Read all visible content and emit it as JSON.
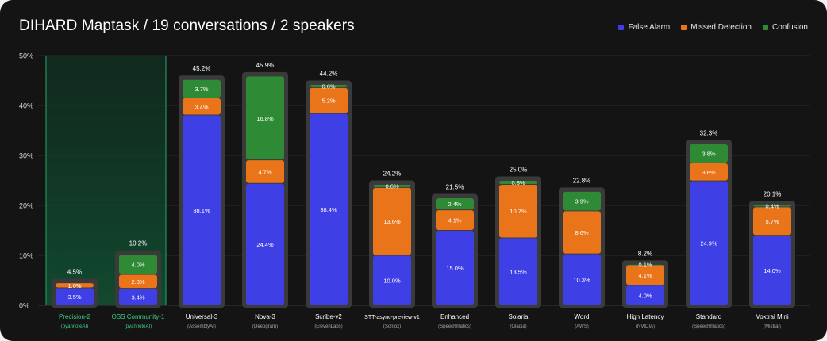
{
  "chart_data": {
    "type": "bar",
    "stacked": true,
    "title": "DIHARD Maptask / 19 conversations / 2 speakers",
    "xlabel": "",
    "ylabel": "",
    "ylim": [
      0,
      50
    ],
    "yticks": [
      "0%",
      "10%",
      "20%",
      "30%",
      "40%",
      "50%"
    ],
    "ytick_values": [
      0,
      10,
      20,
      30,
      40,
      50
    ],
    "grid": true,
    "legend_position": "top-right",
    "highlight_group": "pyannoteAI",
    "categories": [
      {
        "name": "Precision-2",
        "provider": "(pyannoteAI)",
        "total": "4.5%",
        "highlight": true
      },
      {
        "name": "OSS Community-1",
        "provider": "(pyannoteAI)",
        "total": "10.2%",
        "highlight": true
      },
      {
        "name": "Universal-3",
        "provider": "(AssemblyAI)",
        "total": "45.2%",
        "highlight": false
      },
      {
        "name": "Nova-3",
        "provider": "(Deepgram)",
        "total": "45.9%",
        "highlight": false
      },
      {
        "name": "Scribe-v2",
        "provider": "(ElevenLabs)",
        "total": "44.2%",
        "highlight": false
      },
      {
        "name": "STT-async-preview-v1",
        "provider": "(Soniox)",
        "total": "24.2%",
        "highlight": false
      },
      {
        "name": "Enhanced",
        "provider": "(Speechmatics)",
        "total": "21.5%",
        "highlight": false
      },
      {
        "name": "Solaria",
        "provider": "(Gladia)",
        "total": "25.0%",
        "highlight": false
      },
      {
        "name": "Word",
        "provider": "(AWS)",
        "total": "22.8%",
        "highlight": false
      },
      {
        "name": "High Latency",
        "provider": "(NVIDIA)",
        "total": "8.2%",
        "highlight": false
      },
      {
        "name": "Standard",
        "provider": "(Speechmatics)",
        "total": "32.3%",
        "highlight": false
      },
      {
        "name": "Voxtral Mini",
        "provider": "(Mistral)",
        "total": "20.1%",
        "highlight": false
      }
    ],
    "series": [
      {
        "name": "False Alarm",
        "color": "#3f3fe6",
        "values": [
          3.5,
          3.4,
          38.1,
          24.4,
          38.4,
          10.0,
          15.0,
          13.5,
          10.3,
          4.0,
          24.9,
          14.0
        ],
        "labels": [
          "3.5%",
          "3.4%",
          "38.1%",
          "24.4%",
          "38.4%",
          "10.0%",
          "15.0%",
          "13.5%",
          "10.3%",
          "4.0%",
          "24.9%",
          "14.0%"
        ]
      },
      {
        "name": "Missed Detection",
        "color": "#e9741a",
        "values": [
          1.0,
          2.8,
          3.4,
          4.7,
          5.2,
          13.6,
          4.1,
          10.7,
          8.6,
          4.1,
          3.6,
          5.7
        ],
        "labels": [
          "1.0%",
          "2.8%",
          "3.4%",
          "4.7%",
          "5.2%",
          "13.6%",
          "4.1%",
          "10.7%",
          "8.6%",
          "4.1%",
          "3.6%",
          "5.7%"
        ]
      },
      {
        "name": "Confusion",
        "color": "#2f8a35",
        "values": [
          0.0,
          4.0,
          3.7,
          16.8,
          0.6,
          0.6,
          2.4,
          0.8,
          3.9,
          0.1,
          3.8,
          0.4
        ],
        "labels": [
          "",
          "4.0%",
          "3.7%",
          "16.8%",
          "0.6%",
          "0.6%",
          "2.4%",
          "0.8%",
          "3.9%",
          "0.1%",
          "3.8%",
          "0.4%"
        ]
      }
    ],
    "colors": {
      "background": "#141414",
      "highlight_text": "#3fcf86",
      "highlight_border": "#22a866",
      "bar_frame": "#3a3a3a",
      "grid": "#2a2a2a",
      "axis_text": "#d9d9d9"
    }
  }
}
